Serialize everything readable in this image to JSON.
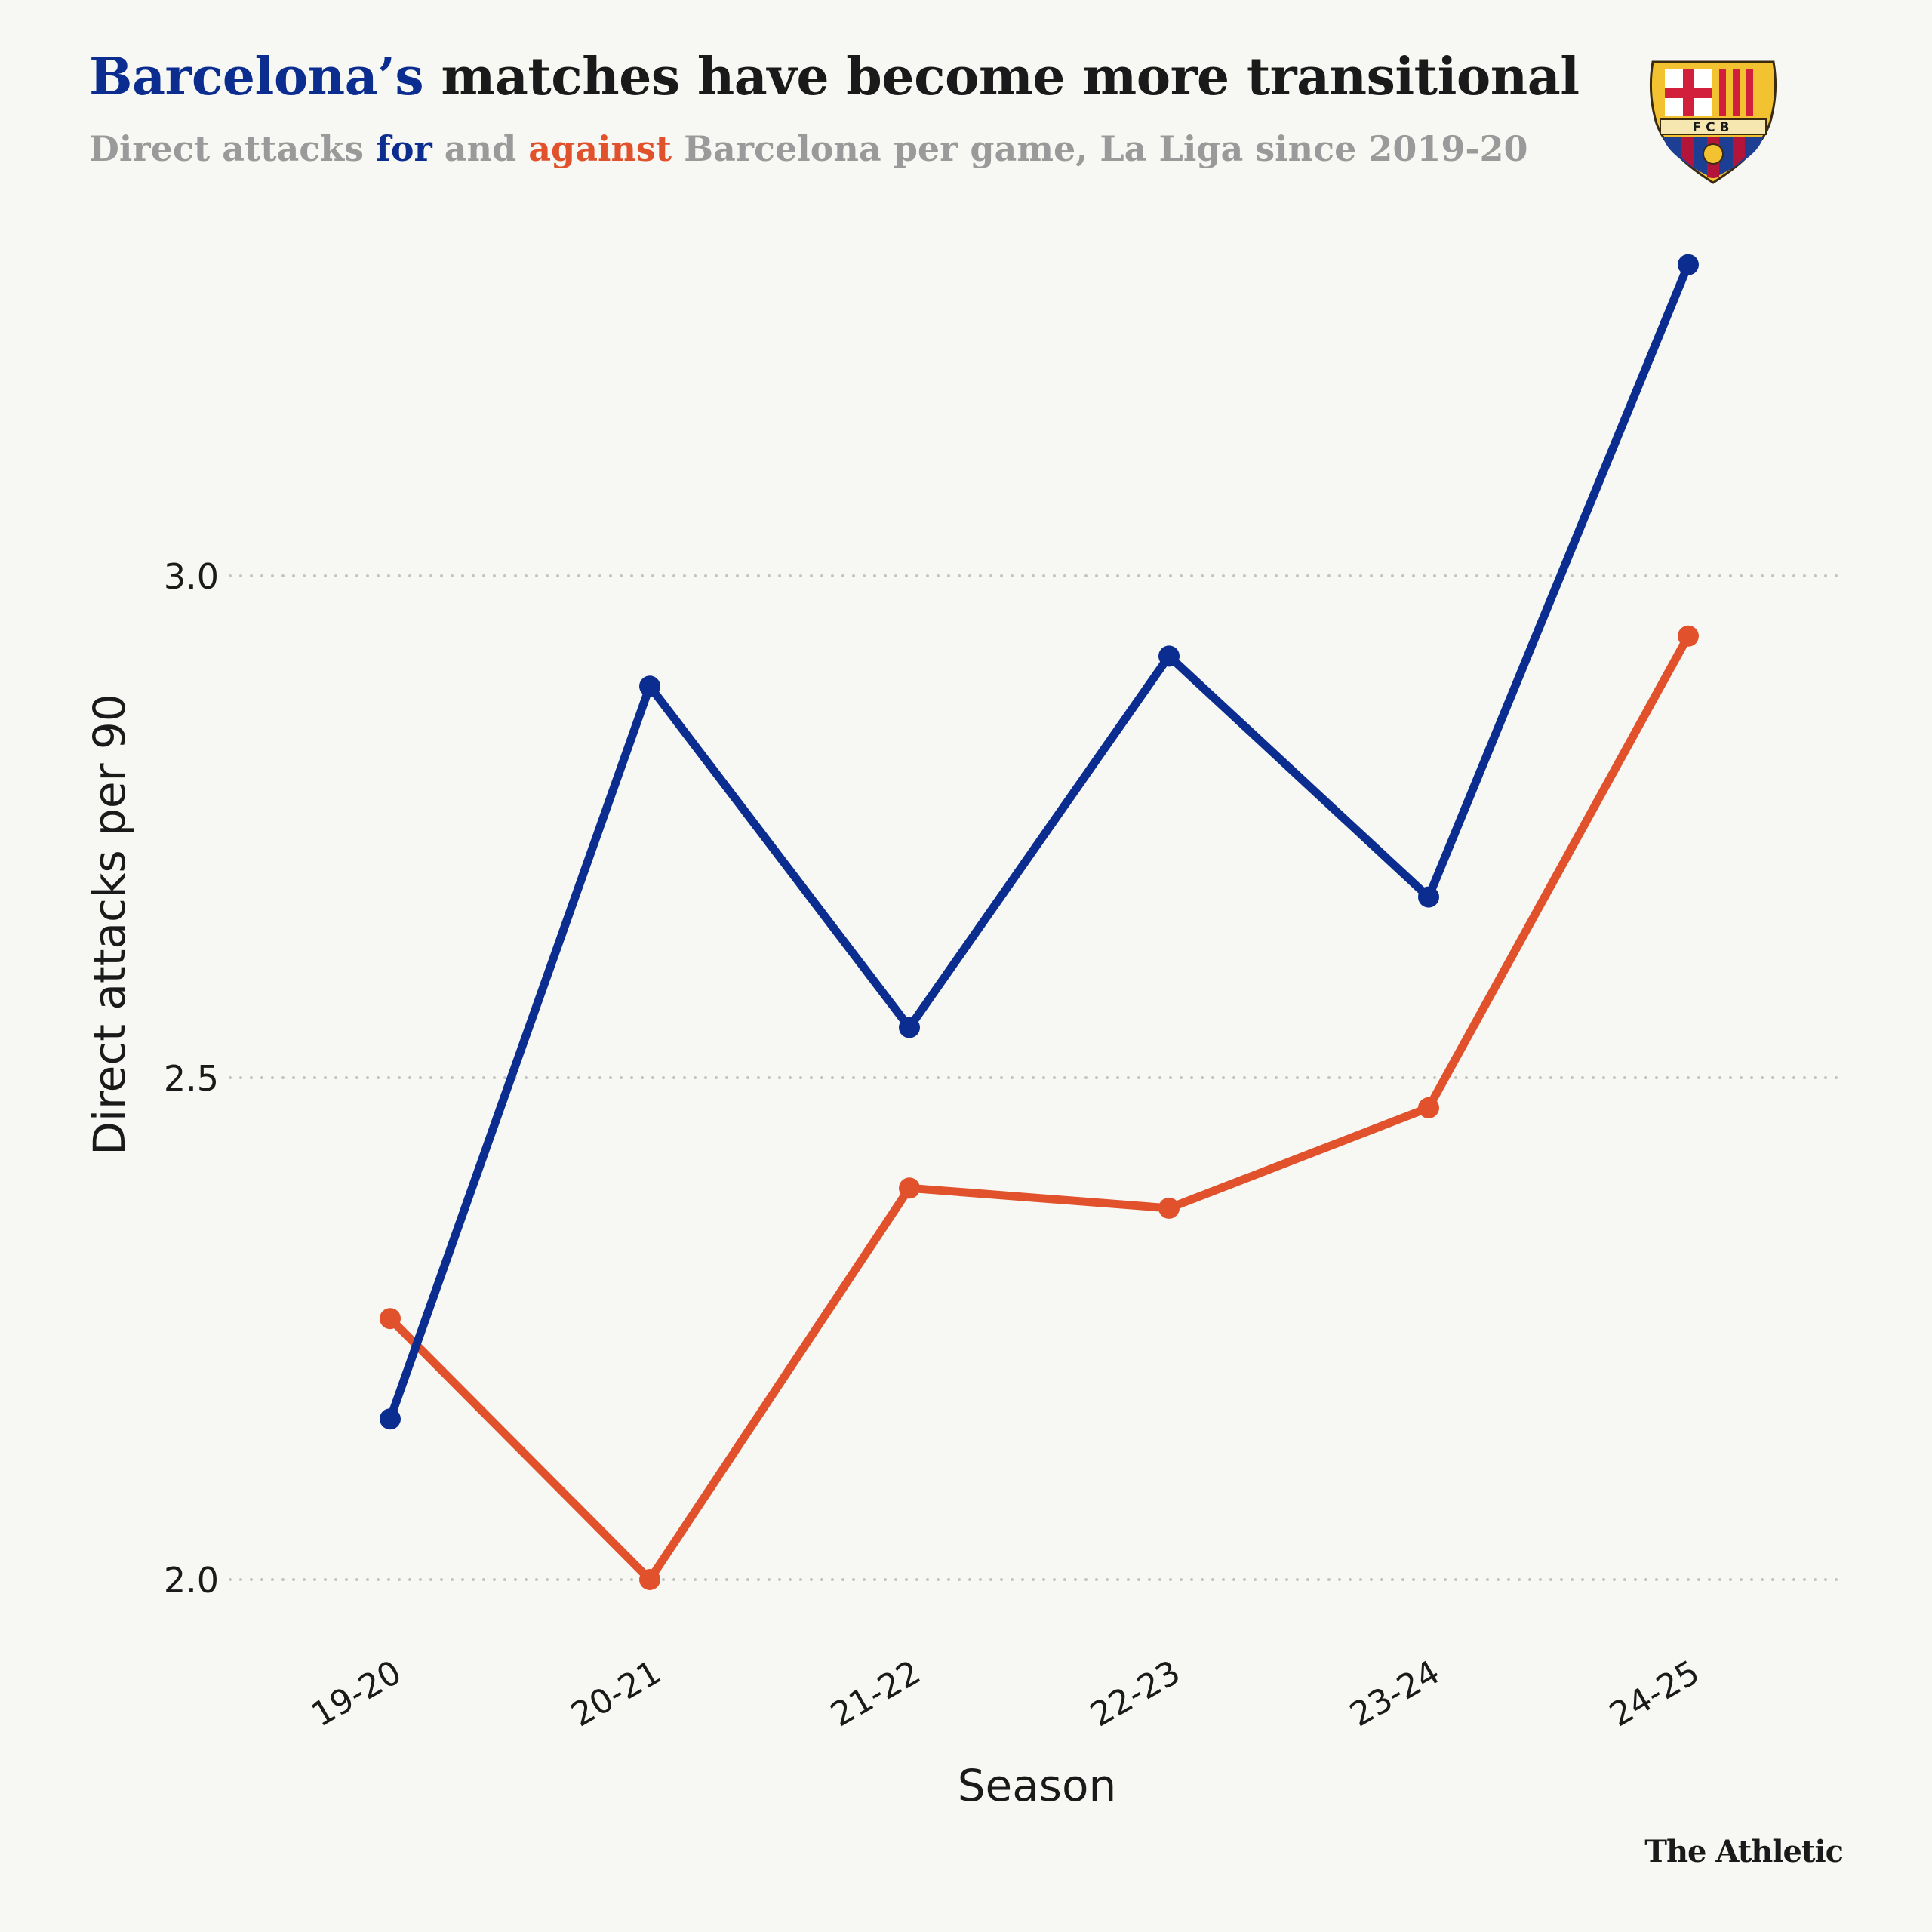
{
  "header": {
    "title_highlight": "Barcelona’s",
    "title_rest": " matches have become more transitional",
    "subtitle_part1": "Direct attacks ",
    "subtitle_for": "for",
    "subtitle_part2": " and ",
    "subtitle_against": "against",
    "subtitle_part3": " Barcelona per game, La Liga since 2019-20"
  },
  "crest": {
    "text": "FCB",
    "icon": "fc-barcelona-crest-icon"
  },
  "brand": "The Athletic",
  "colors": {
    "for": "#0b2d8f",
    "against": "#e1512b",
    "grid": "#c8c8c8",
    "text": "#1a1a1a"
  },
  "chart_data": {
    "type": "line",
    "categories": [
      "19-20",
      "20-21",
      "21-22",
      "22-23",
      "23-24",
      "24-25"
    ],
    "series": [
      {
        "key": "for",
        "color": "#0b2d8f",
        "values": [
          2.16,
          2.89,
          2.55,
          2.92,
          2.68,
          3.31
        ]
      },
      {
        "key": "against",
        "color": "#e1512b",
        "values": [
          2.26,
          2.0,
          2.39,
          2.37,
          2.47,
          2.94
        ]
      }
    ],
    "yticks": [
      "2.0",
      "2.5",
      "3.0"
    ],
    "ylim": [
      2.0,
      3.0
    ],
    "xlabel": "Season",
    "ylabel": "Direct attacks per 90",
    "grid": "horizontal dotted"
  }
}
